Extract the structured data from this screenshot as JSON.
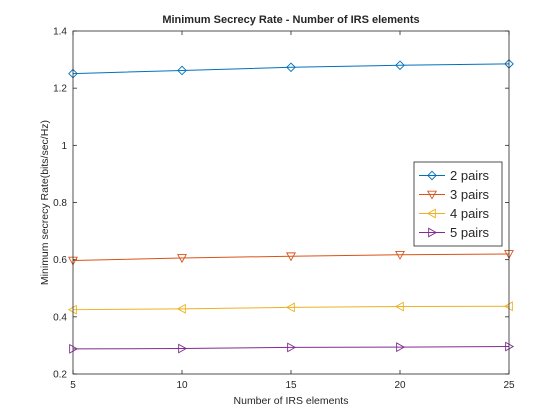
{
  "chart_data": {
    "type": "line",
    "title": "Minimum Secrecy Rate - Number of IRS elements",
    "xlabel": "Number of IRS elements",
    "ylabel": "Minimum secrecy Rate(bits/sec/Hz)",
    "xlim": [
      5,
      25
    ],
    "ylim": [
      0.2,
      1.4
    ],
    "xticks": [
      5,
      10,
      15,
      20,
      25
    ],
    "yticks": [
      0.2,
      0.4,
      0.6,
      0.8,
      1,
      1.2,
      1.4
    ],
    "x": [
      5,
      10,
      15,
      20,
      25
    ],
    "series": [
      {
        "name": "2 pairs",
        "values": [
          1.251,
          1.262,
          1.273,
          1.28,
          1.285
        ],
        "color": "#0072BD",
        "marker": "diamond"
      },
      {
        "name": "3 pairs",
        "values": [
          0.597,
          0.606,
          0.612,
          0.617,
          0.62
        ],
        "color": "#D95319",
        "marker": "triangle-down"
      },
      {
        "name": "4 pairs",
        "values": [
          0.425,
          0.428,
          0.433,
          0.436,
          0.437
        ],
        "color": "#EDB120",
        "marker": "triangle-left"
      },
      {
        "name": "5 pairs",
        "values": [
          0.288,
          0.289,
          0.293,
          0.294,
          0.296
        ],
        "color": "#7E2F8E",
        "marker": "triangle-right"
      }
    ],
    "grid": false,
    "legend_position": "right"
  }
}
